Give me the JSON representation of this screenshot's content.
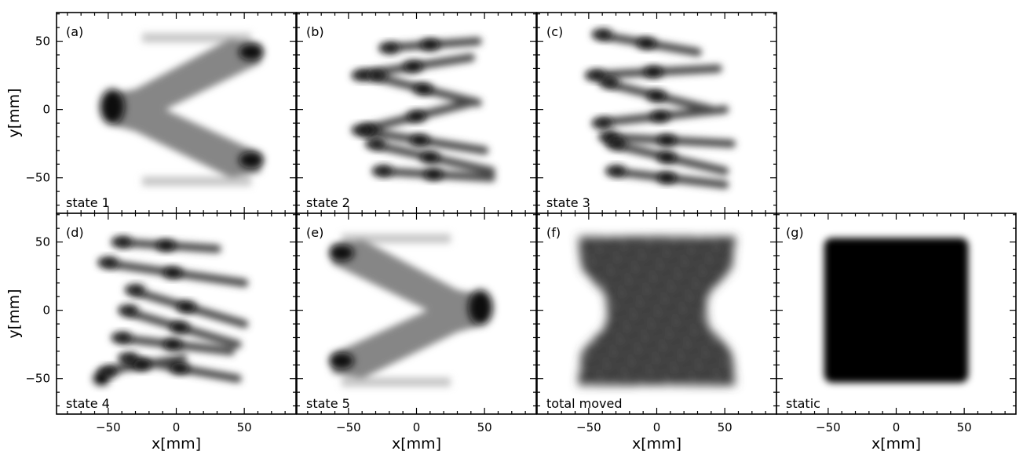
{
  "chart_data": {
    "type": "heatmap",
    "layout": {
      "rows": 2,
      "cols": 4
    },
    "xlabel": "x[mm]",
    "ylabel": "y[mm]",
    "xlim": [
      -88,
      88
    ],
    "ylim": [
      -76,
      71
    ],
    "xticks": [
      -50,
      0,
      50
    ],
    "yticks": [
      -50,
      0,
      50
    ],
    "panels": [
      {
        "id": "(a)",
        "label": "state 1",
        "row": 0,
        "col": 0,
        "pattern": "zigzag-left"
      },
      {
        "id": "(b)",
        "label": "state 2",
        "row": 0,
        "col": 1,
        "pattern": "diagonal-bands"
      },
      {
        "id": "(c)",
        "label": "state 3",
        "row": 0,
        "col": 2,
        "pattern": "diagonal-bands"
      },
      {
        "id": "(d)",
        "label": "state 4",
        "row": 1,
        "col": 0,
        "pattern": "diagonal-bands"
      },
      {
        "id": "(e)",
        "label": "state 5",
        "row": 1,
        "col": 1,
        "pattern": "zigzag-right"
      },
      {
        "id": "(f)",
        "label": "total moved",
        "row": 1,
        "col": 2,
        "pattern": "hourglass"
      },
      {
        "id": "(g)",
        "label": "static",
        "row": 1,
        "col": 3,
        "pattern": "square"
      }
    ]
  }
}
